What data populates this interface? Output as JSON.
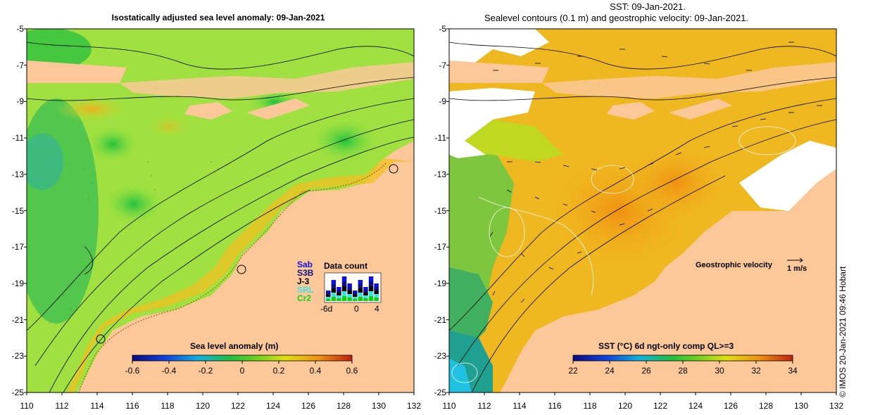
{
  "left_panel": {
    "title": "Isostatically adjusted sea level anomaly: 09-Jan-2021",
    "colorbar_label": "Sea level anomaly (m)",
    "colorbar_ticks": [
      "-0.6",
      "-0.4",
      "-0.2",
      "0",
      "0.2",
      "0.4",
      "0.6"
    ],
    "data_count": {
      "title": "Data count",
      "satellites": [
        {
          "name": "Sab",
          "color": "#1010e0"
        },
        {
          "name": "S3B",
          "color": "#101080"
        },
        {
          "name": "J-3",
          "color": "#000000"
        },
        {
          "name": "SRL",
          "color": "#40e0e0"
        },
        {
          "name": "Cr2",
          "color": "#10d010"
        }
      ],
      "axis_ticks": [
        "-6d",
        "0",
        "4"
      ]
    }
  },
  "right_panel": {
    "title_line1": "SST: 09-Jan-2021.",
    "title_line2": "Sealevel contours (0.1 m) and geostrophic velocity: 09-Jan-2021.",
    "colorbar_label": "SST (°C) 6d ngt-only comp QL>=3",
    "colorbar_ticks": [
      "22",
      "24",
      "26",
      "28",
      "30",
      "32",
      "34"
    ],
    "velocity_legend_label": "Geostrophic velocity",
    "velocity_scale_label": "1 m/s"
  },
  "axes": {
    "lat_ticks": [
      "-5",
      "-7",
      "-9",
      "-11",
      "-13",
      "-15",
      "-17",
      "-19",
      "-21",
      "-23",
      "-25"
    ],
    "lon_ticks": [
      "110",
      "112",
      "114",
      "116",
      "118",
      "120",
      "122",
      "124",
      "126",
      "128",
      "130",
      "132"
    ]
  },
  "credit": "© IMOS 20-Jan-2021 09:46 Hobart",
  "colors": {
    "land": "#fcc89a",
    "sla_low": "#1a3fd0",
    "sla_mid": "#22cc22",
    "sla_high": "#ffd000",
    "sst_warm": "#f0a010",
    "sst_cool": "#40b060",
    "no_data": "#ffffff"
  }
}
